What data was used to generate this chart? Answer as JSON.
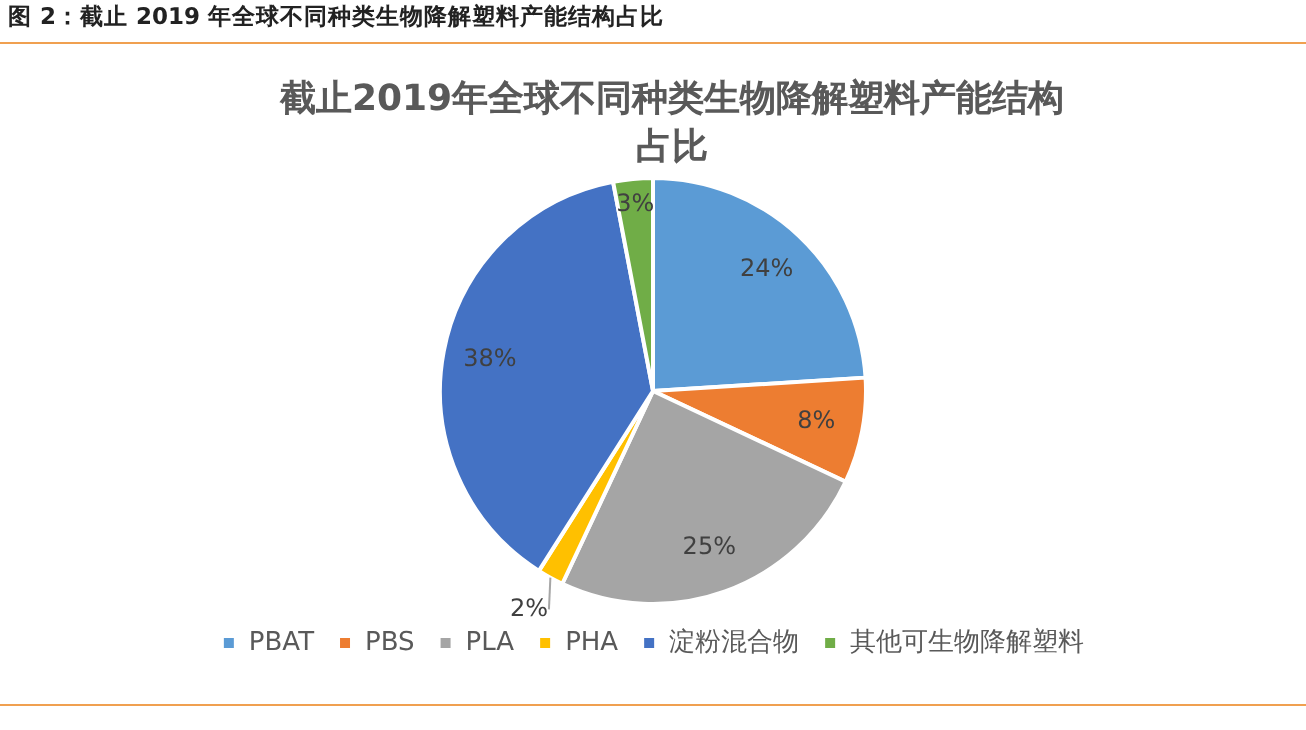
{
  "chart_data": {
    "type": "pie",
    "title": "截止2019年全球不同种类生物降解塑料产能结构占比",
    "annotations": [
      "图 2：截止 2019 年全球不同种类生物降解塑料产能结构占比"
    ],
    "categories": [
      "PBAT",
      "PBS",
      "PLA",
      "PHA",
      "淀粉混合物",
      "其他可生物降解塑料"
    ],
    "values": [
      24,
      8,
      25,
      2,
      38,
      3
    ],
    "colors": [
      "#5b9bd5",
      "#ed7d31",
      "#a5a5a5",
      "#ffc000",
      "#4472c4",
      "#70ad47"
    ],
    "value_labels": [
      "24%",
      "8%",
      "25%",
      "2%",
      "38%",
      "3%"
    ],
    "legend": "bottom"
  }
}
